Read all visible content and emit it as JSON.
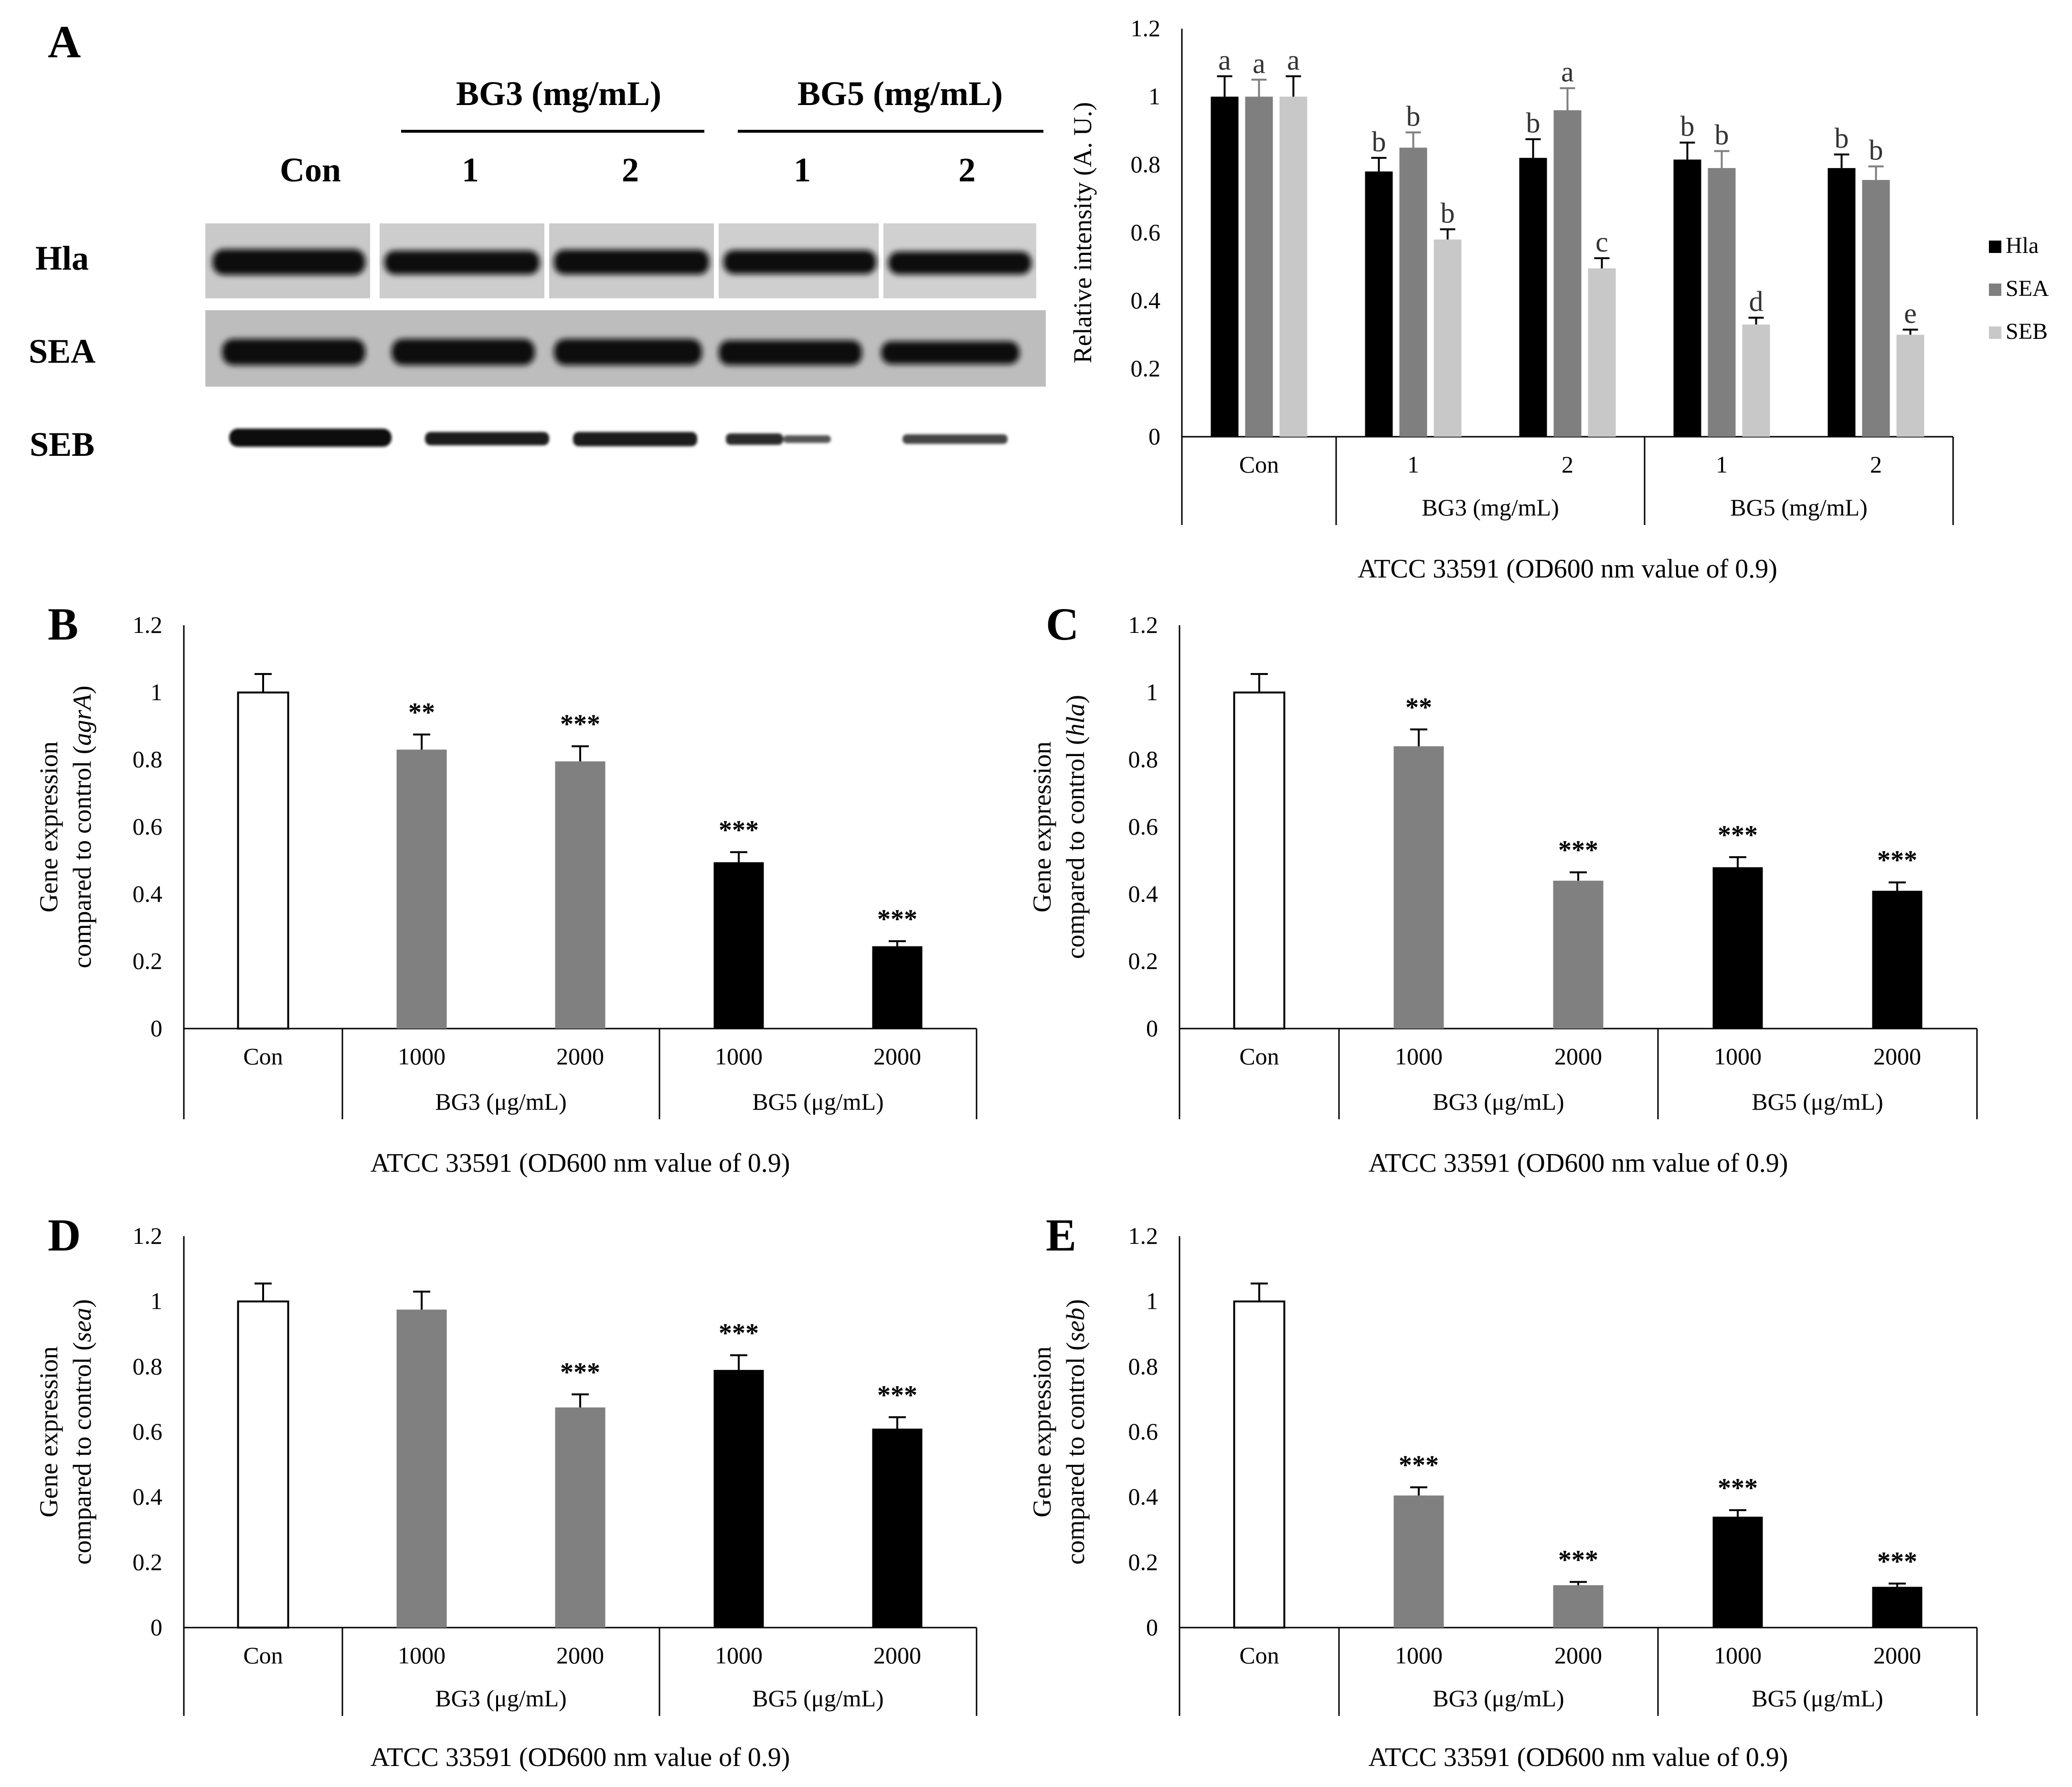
{
  "panel_letters": [
    "A",
    "B",
    "C",
    "D",
    "E"
  ],
  "blot": {
    "group_labels": [
      "BG3 (mg/mL)",
      "BG5 (mg/mL)"
    ],
    "lane_labels": [
      "Con",
      "1",
      "2",
      "1",
      "2"
    ],
    "row_labels": [
      "Hla",
      "SEA",
      "SEB"
    ]
  },
  "colors": {
    "hla": "#000000",
    "sea": "#7f7f7f",
    "seb": "#c8c8c8",
    "con_fill": "#ffffff",
    "bg3_fill": "#808080",
    "bg5_fill": "#000000"
  },
  "chart_data": [
    {
      "id": "A",
      "type": "bar",
      "ylabel": "Relative intensity (A. U.)",
      "xlabel": "ATCC 33591 (OD600 nm value of 0.9)",
      "ylim": [
        0,
        1.2
      ],
      "yticks": [
        "0",
        "0.2",
        "0.4",
        "0.6",
        "0.8",
        "1",
        "1.2"
      ],
      "categories": [
        "Con",
        "1",
        "2",
        "1",
        "2"
      ],
      "groups": [
        {
          "label": "BG3 (mg/mL)",
          "span": [
            1,
            2
          ]
        },
        {
          "label": "BG5 (mg/mL)",
          "span": [
            3,
            4
          ]
        }
      ],
      "legend": "right",
      "series": [
        {
          "name": "Hla",
          "color_key": "hla",
          "values": [
            1.0,
            0.78,
            0.82,
            0.815,
            0.79
          ],
          "errors": [
            0.06,
            0.04,
            0.055,
            0.05,
            0.04
          ],
          "labels": [
            "a",
            "b",
            "b",
            "b",
            "b"
          ]
        },
        {
          "name": "SEA",
          "color_key": "sea",
          "values": [
            1.0,
            0.85,
            0.96,
            0.79,
            0.755
          ],
          "errors": [
            0.05,
            0.045,
            0.065,
            0.05,
            0.04
          ],
          "labels": [
            "a",
            "b",
            "a",
            "b",
            "b"
          ]
        },
        {
          "name": "SEB",
          "color_key": "seb",
          "values": [
            1.0,
            0.58,
            0.495,
            0.33,
            0.3
          ],
          "errors": [
            0.06,
            0.03,
            0.03,
            0.02,
            0.015
          ],
          "labels": [
            "a",
            "b",
            "c",
            "d",
            "e"
          ]
        }
      ]
    },
    {
      "id": "B",
      "type": "bar",
      "ylabel_lines": [
        "Gene expression",
        "compared to control ("
      ],
      "ylabel_gene": "agrA",
      "ylabel_close": ")",
      "xlabel": "ATCC 33591 (OD600 nm value of 0.9)",
      "ylim": [
        0,
        1.2
      ],
      "yticks": [
        "0",
        "0.2",
        "0.4",
        "0.6",
        "0.8",
        "1",
        "1.2"
      ],
      "categories": [
        "Con",
        "1000",
        "2000",
        "1000",
        "2000"
      ],
      "groups": [
        {
          "label": "BG3 (μg/mL)",
          "span": [
            1,
            2
          ]
        },
        {
          "label": "BG5 (μg/mL)",
          "span": [
            3,
            4
          ]
        }
      ],
      "values": [
        1.0,
        0.83,
        0.795,
        0.495,
        0.245
      ],
      "errors": [
        0.055,
        0.045,
        0.045,
        0.03,
        0.015
      ],
      "significance": [
        "",
        "**",
        "***",
        "***",
        "***"
      ]
    },
    {
      "id": "C",
      "type": "bar",
      "ylabel_lines": [
        "Gene expression",
        "compared to control ("
      ],
      "ylabel_gene": "hla",
      "ylabel_close": ")",
      "xlabel": "ATCC 33591 (OD600 nm value of 0.9)",
      "ylim": [
        0,
        1.2
      ],
      "yticks": [
        "0",
        "0.2",
        "0.4",
        "0.6",
        "0.8",
        "1",
        "1.2"
      ],
      "categories": [
        "Con",
        "1000",
        "2000",
        "1000",
        "2000"
      ],
      "groups": [
        {
          "label": "BG3 (μg/mL)",
          "span": [
            1,
            2
          ]
        },
        {
          "label": "BG5 (μg/mL)",
          "span": [
            3,
            4
          ]
        }
      ],
      "values": [
        1.0,
        0.84,
        0.44,
        0.48,
        0.41
      ],
      "errors": [
        0.055,
        0.05,
        0.025,
        0.03,
        0.025
      ],
      "significance": [
        "",
        "**",
        "***",
        "***",
        "***"
      ]
    },
    {
      "id": "D",
      "type": "bar",
      "ylabel_lines": [
        "Gene expression",
        "compared to control ("
      ],
      "ylabel_gene": "sea",
      "ylabel_close": ")",
      "xlabel": "ATCC 33591 (OD600 nm value of 0.9)",
      "ylim": [
        0,
        1.2
      ],
      "yticks": [
        "0",
        "0.2",
        "0.4",
        "0.6",
        "0.8",
        "1",
        "1.2"
      ],
      "categories": [
        "Con",
        "1000",
        "2000",
        "1000",
        "2000"
      ],
      "groups": [
        {
          "label": "BG3 (μg/mL)",
          "span": [
            1,
            2
          ]
        },
        {
          "label": "BG5 (μg/mL)",
          "span": [
            3,
            4
          ]
        }
      ],
      "values": [
        1.0,
        0.975,
        0.675,
        0.79,
        0.61
      ],
      "errors": [
        0.055,
        0.055,
        0.04,
        0.045,
        0.035
      ],
      "significance": [
        "",
        "",
        "***",
        "***",
        "***"
      ]
    },
    {
      "id": "E",
      "type": "bar",
      "ylabel_lines": [
        "Gene expression",
        "compared to control ("
      ],
      "ylabel_gene": "seb",
      "ylabel_close": ")",
      "xlabel": "ATCC 33591 (OD600 nm value of 0.9)",
      "ylim": [
        0,
        1.2
      ],
      "yticks": [
        "0",
        "0.2",
        "0.4",
        "0.6",
        "0.8",
        "1",
        "1.2"
      ],
      "categories": [
        "Con",
        "1000",
        "2000",
        "1000",
        "2000"
      ],
      "groups": [
        {
          "label": "BG3 (μg/mL)",
          "span": [
            1,
            2
          ]
        },
        {
          "label": "BG5 (μg/mL)",
          "span": [
            3,
            4
          ]
        }
      ],
      "values": [
        1.0,
        0.405,
        0.13,
        0.34,
        0.125
      ],
      "errors": [
        0.055,
        0.025,
        0.01,
        0.02,
        0.01
      ],
      "significance": [
        "",
        "***",
        "***",
        "***",
        "***"
      ]
    }
  ]
}
